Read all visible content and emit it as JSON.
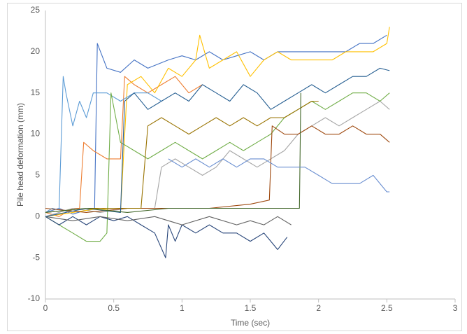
{
  "chart_data": {
    "type": "line",
    "x_label": "Time (sec)",
    "y_label": "Pile head deformation (mm)",
    "xlim": [
      0,
      3
    ],
    "xticks": [
      0,
      0.5,
      1,
      1.5,
      2,
      2.5,
      3
    ],
    "ylim": [
      -10,
      25
    ],
    "yticks": [
      -10,
      -5,
      0,
      5,
      10,
      15,
      20,
      25
    ],
    "grid": false,
    "series": [
      {
        "color": "#4472c4",
        "x": [
          0,
          0.1,
          0.2,
          0.3,
          0.36,
          0.38,
          0.45,
          0.55,
          0.65,
          0.75,
          0.9,
          1.0,
          1.1,
          1.2,
          1.3,
          1.4,
          1.5,
          1.6,
          1.7,
          1.8,
          1.9,
          2.0,
          2.1,
          2.2,
          2.3,
          2.4,
          2.5
        ],
        "values": [
          0.5,
          1,
          0.3,
          0.8,
          1,
          21,
          18,
          17.5,
          19,
          18,
          19,
          19.5,
          19,
          20,
          19,
          19.5,
          20,
          19,
          20,
          20,
          20,
          20,
          20,
          20,
          21,
          21,
          22
        ]
      },
      {
        "color": "#ed7d31",
        "x": [
          0,
          0.1,
          0.2,
          0.25,
          0.28,
          0.35,
          0.45,
          0.55,
          0.58,
          0.65,
          0.75,
          0.85,
          0.95,
          1.05,
          1.15
        ],
        "values": [
          0.5,
          0,
          1,
          1,
          9,
          8,
          7,
          7,
          17,
          16,
          15,
          16,
          17,
          15,
          16
        ]
      },
      {
        "color": "#a5a5a5",
        "x": [
          0,
          0.2,
          0.4,
          0.6,
          0.8,
          0.85,
          0.95,
          1.05,
          1.15,
          1.25,
          1.35,
          1.45,
          1.55,
          1.65,
          1.75,
          1.85,
          1.95,
          2.05,
          2.15,
          2.25,
          2.35,
          2.45,
          2.52
        ],
        "values": [
          0,
          1,
          0.5,
          1,
          1,
          6,
          7,
          6,
          5,
          6,
          8,
          7,
          6,
          7,
          8,
          10,
          11,
          12,
          11,
          12,
          13,
          14,
          13
        ]
      },
      {
        "color": "#ffc000",
        "x": [
          0,
          0.2,
          0.4,
          0.55,
          0.6,
          0.7,
          0.8,
          0.9,
          1.0,
          1.1,
          1.13,
          1.2,
          1.3,
          1.4,
          1.5,
          1.6,
          1.7,
          1.8,
          1.9,
          2.0,
          2.1,
          2.2,
          2.3,
          2.4,
          2.5,
          2.52
        ],
        "values": [
          0,
          0.5,
          1,
          0.5,
          16,
          17,
          15,
          18,
          17,
          19,
          22,
          18,
          19,
          20,
          17,
          19,
          20,
          19,
          19,
          19,
          19,
          20,
          20,
          20,
          21,
          23
        ]
      },
      {
        "color": "#5b9bd5",
        "x": [
          0,
          0.05,
          0.1,
          0.13,
          0.15,
          0.2,
          0.25,
          0.3,
          0.35,
          0.45,
          0.55,
          0.65,
          0.75,
          0.85
        ],
        "values": [
          0.5,
          1,
          0.8,
          17,
          15,
          11,
          14,
          12,
          15,
          15,
          14,
          15,
          15,
          14
        ]
      },
      {
        "color": "#70ad47",
        "x": [
          0,
          0.1,
          0.2,
          0.3,
          0.4,
          0.45,
          0.48,
          0.55,
          0.65,
          0.75,
          0.85,
          0.95,
          1.05,
          1.15,
          1.25,
          1.35,
          1.45,
          1.55,
          1.65,
          1.75,
          1.85,
          1.95,
          2.05,
          2.15,
          2.25,
          2.35,
          2.45,
          2.52
        ],
        "values": [
          0,
          -1,
          -2,
          -3,
          -3,
          -2,
          15,
          9,
          8,
          7,
          8,
          9,
          8,
          7,
          8,
          9,
          8,
          9,
          10,
          12,
          13,
          14,
          13,
          14,
          15,
          15,
          14,
          15
        ]
      },
      {
        "color": "#264478",
        "x": [
          0,
          0.1,
          0.2,
          0.3,
          0.4,
          0.5,
          0.6,
          0.7,
          0.8,
          0.88,
          0.9,
          0.95,
          1.0,
          1.1,
          1.2,
          1.3,
          1.4,
          1.5,
          1.6,
          1.7,
          1.77
        ],
        "values": [
          0,
          -1,
          0,
          -1,
          0,
          -0.5,
          0,
          -1,
          -2,
          -5,
          -1,
          -3,
          -1,
          -2,
          -1,
          -2,
          -2,
          -3,
          -2,
          -4,
          -2.5
        ]
      },
      {
        "color": "#9e480e",
        "x": [
          0,
          0.3,
          0.6,
          0.9,
          1.2,
          1.5,
          1.64,
          1.66,
          1.75,
          1.85,
          1.95,
          2.05,
          2.15,
          2.25,
          2.35,
          2.45,
          2.52
        ],
        "values": [
          1,
          0.5,
          1,
          1,
          1,
          1.5,
          2,
          11,
          10,
          10,
          11,
          10,
          10,
          11,
          10,
          10,
          9
        ]
      },
      {
        "color": "#636363",
        "x": [
          0,
          0.2,
          0.4,
          0.6,
          0.8,
          1.0,
          1.2,
          1.4,
          1.5,
          1.6,
          1.7,
          1.8
        ],
        "values": [
          0,
          -0.5,
          0,
          -0.5,
          0,
          -1,
          0,
          -1,
          -0.5,
          -1,
          0,
          -1
        ]
      },
      {
        "color": "#997300",
        "x": [
          0,
          0.3,
          0.6,
          0.7,
          0.75,
          0.85,
          0.95,
          1.05,
          1.15,
          1.25,
          1.35,
          1.45,
          1.55,
          1.65,
          1.75,
          1.85,
          1.95,
          2.0
        ],
        "values": [
          0.5,
          1,
          1,
          1,
          11,
          12,
          11,
          10,
          11,
          12,
          11,
          12,
          11,
          12,
          12,
          13,
          14,
          14
        ]
      },
      {
        "color": "#255e91",
        "x": [
          0,
          0.3,
          0.55,
          0.58,
          0.65,
          0.75,
          0.85,
          0.95,
          1.05,
          1.15,
          1.25,
          1.35,
          1.45,
          1.55,
          1.65,
          1.75,
          1.85,
          1.95,
          2.05,
          2.15,
          2.25,
          2.35,
          2.45,
          2.52
        ],
        "values": [
          0,
          1,
          0.5,
          14,
          15,
          13,
          14,
          15,
          14,
          16,
          15,
          14,
          16,
          15,
          13,
          14,
          15,
          16,
          15,
          16,
          17,
          17,
          18,
          17.7
        ]
      },
      {
        "color": "#43682b",
        "x": [
          0,
          0.3,
          0.6,
          0.9,
          1.2,
          1.5,
          1.8,
          1.86,
          1.87
        ],
        "values": [
          0.5,
          1,
          0.5,
          1,
          1,
          1,
          1,
          1,
          15
        ]
      },
      {
        "color": "#698ed0",
        "x": [
          0.9,
          1.0,
          1.1,
          1.2,
          1.3,
          1.4,
          1.5,
          1.6,
          1.7,
          1.8,
          1.9,
          2.0,
          2.1,
          2.2,
          2.3,
          2.4,
          2.5,
          2.52
        ],
        "values": [
          7,
          6,
          7,
          6,
          7,
          6,
          7,
          7,
          6,
          6,
          6,
          5,
          4,
          4,
          4,
          5,
          3,
          3
        ]
      }
    ]
  }
}
